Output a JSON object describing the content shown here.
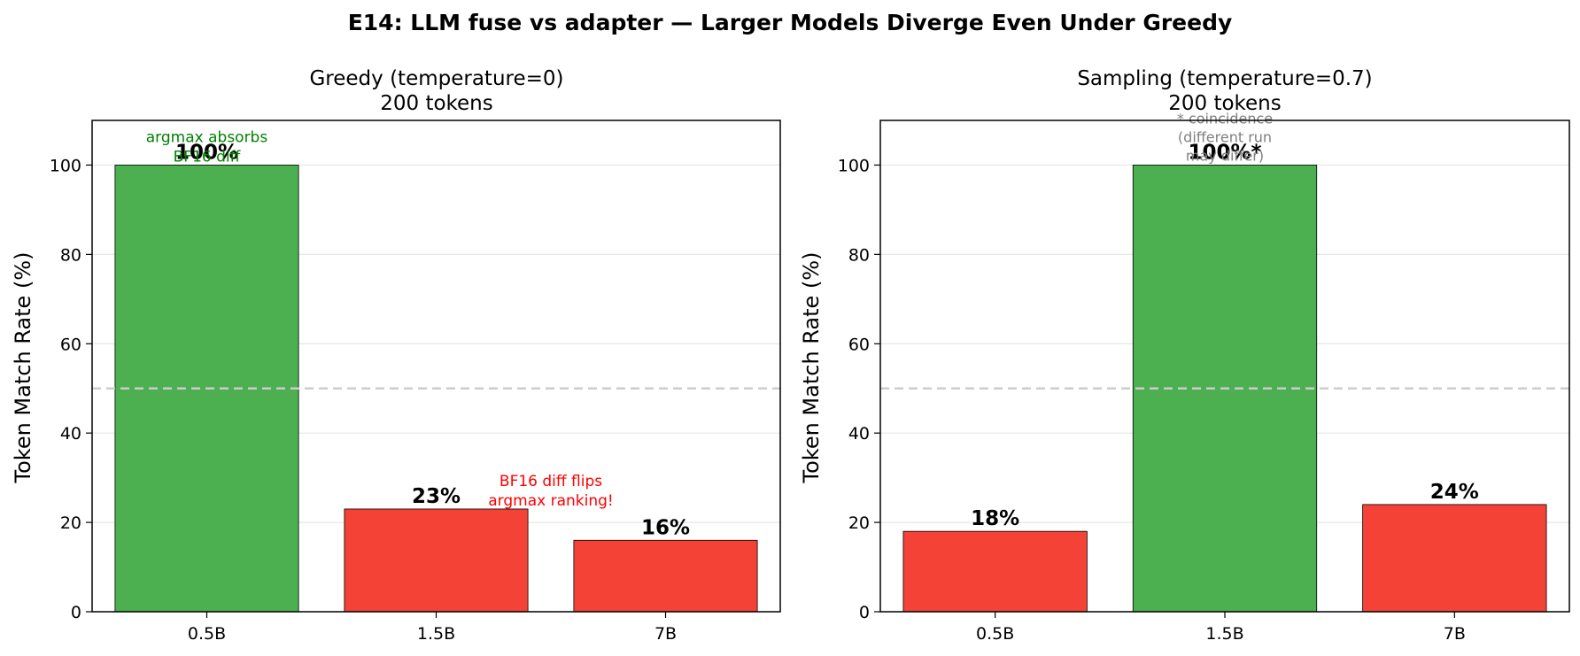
{
  "figure": {
    "suptitle": "E14: LLM fuse vs adapter — Larger Models Diverge Even Under Greedy"
  },
  "colors": {
    "match": "#4caf50",
    "diverge": "#f44336",
    "edge": "#000000",
    "grid": "#e6e6e6",
    "reference_line": "#cccccc",
    "note_green": "#008000",
    "note_red": "#ff0000",
    "note_gray": "#808080"
  },
  "chart_data": [
    {
      "type": "bar",
      "title_lines": [
        "Greedy (temperature=0)",
        "200 tokens"
      ],
      "ylabel": "Token Match Rate (%)",
      "xlabel": "",
      "categories": [
        "0.5B",
        "1.5B",
        "7B"
      ],
      "values": [
        100,
        23,
        16
      ],
      "value_labels": [
        "100%",
        "23%",
        "16%"
      ],
      "bar_colors": [
        "#4caf50",
        "#f44336",
        "#f44336"
      ],
      "ylim": [
        0,
        110
      ],
      "yticks": [
        0,
        20,
        40,
        60,
        80,
        100
      ],
      "grid": "y",
      "reference_line": 50,
      "annotations": [
        {
          "lines": [
            "argmax absorbs",
            "BF16 diff"
          ],
          "category": 0,
          "anchor_value": 100,
          "color": "#008000"
        },
        {
          "lines": [
            "BF16 diff flips",
            "argmax ranking!"
          ],
          "category": 1.5,
          "anchor_value": 23,
          "color": "#ff0000"
        }
      ]
    },
    {
      "type": "bar",
      "title_lines": [
        "Sampling (temperature=0.7)",
        "200 tokens"
      ],
      "ylabel": "Token Match Rate (%)",
      "xlabel": "",
      "categories": [
        "0.5B",
        "1.5B",
        "7B"
      ],
      "values": [
        18,
        100,
        24
      ],
      "value_labels": [
        "18%",
        "100%*",
        "24%"
      ],
      "bar_colors": [
        "#f44336",
        "#4caf50",
        "#f44336"
      ],
      "ylim": [
        0,
        110
      ],
      "yticks": [
        0,
        20,
        40,
        60,
        80,
        100
      ],
      "grid": "y",
      "reference_line": 50,
      "annotations": [
        {
          "lines": [
            "* coincidence",
            "(different run",
            "may differ)"
          ],
          "category": 1,
          "anchor_value": 100,
          "color": "#808080"
        }
      ]
    }
  ]
}
